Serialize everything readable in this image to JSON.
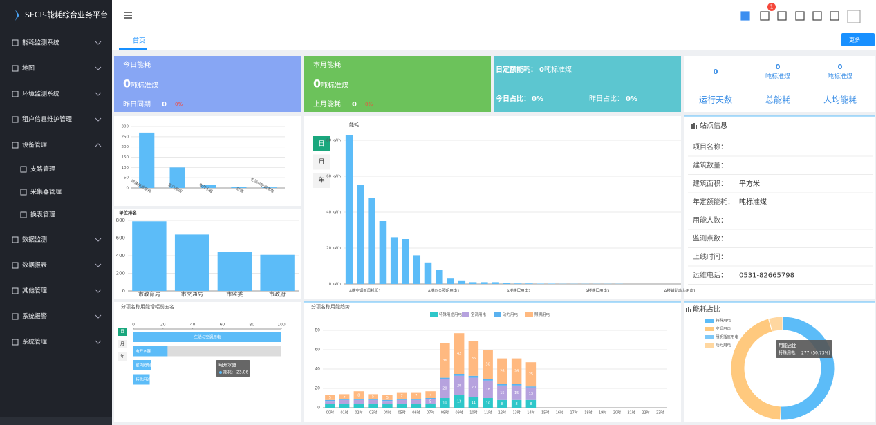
{
  "sidebar": {
    "logo": "SECP-能耗综合业务平台",
    "menu": [
      "能耗监测系统",
      "地图",
      "环境监测系统",
      "租户信息维护管理",
      "设备管理",
      "支路管理",
      "采集器管理",
      "换表管理",
      "数据监测",
      "数据报表",
      "其他管理",
      "系统报警",
      "系统管理"
    ]
  },
  "notification_count": 1,
  "tabs": {
    "home": "首页",
    "more": "更多"
  },
  "cards": [
    {
      "title": "今日能耗",
      "value": 0,
      "unit": "吨标准煤",
      "compare_label": "昨日同期",
      "compare_value": 0,
      "change": "0%",
      "color": "#87a6f4"
    },
    {
      "title": "本月能耗",
      "value": 0,
      "unit": "吨标准煤",
      "compare_label": "上月能耗",
      "compare_value": 0,
      "change": "0%",
      "color": "#6cc25b"
    }
  ],
  "quota": {
    "label": "日定额能耗：",
    "value": 0,
    "unit": "吨标准煤",
    "today_label": "今日占比：",
    "today_value": "0%",
    "yesterday_label": "昨日占比：",
    "yesterday_value": "0%",
    "color": "#5cc6d0"
  },
  "summary": [
    {
      "value": 0,
      "label": "运行天数"
    },
    {
      "value": 0,
      "unit": "吨标准煤",
      "label": "总能耗"
    },
    {
      "value": 0,
      "unit": "吨标准煤",
      "label": "人均能耗"
    }
  ],
  "site_info": {
    "title": "站点信息",
    "rows": [
      {
        "label": "项目名称："
      },
      {
        "label": "建筑数量："
      },
      {
        "label": "建筑面积：",
        "value": "平方米"
      },
      {
        "label": "年定额能耗：",
        "value": "吨标准煤"
      },
      {
        "label": "用能人数："
      },
      {
        "label": "监测点数："
      },
      {
        "label": "上线时间："
      },
      {
        "label": "运维电话：",
        "value": "0531-82665798"
      }
    ]
  },
  "charts": {
    "category_bar": {
      "type": "bar",
      "categories": [
        "特殊用途能耗",
        "室内照明",
        "电开水器",
        "空调",
        "生活与空调用电"
      ],
      "values": [
        270,
        100,
        15,
        5,
        3
      ],
      "ylim": [
        0,
        300
      ],
      "yticks": [
        0,
        50,
        100,
        150,
        200,
        250,
        300
      ],
      "color": "#5cbcf8"
    },
    "unit_rank": {
      "type": "bar",
      "title": "单位排名",
      "categories": [
        "市教育局",
        "市交通局",
        "市监委",
        "市政府"
      ],
      "values": [
        790,
        640,
        440,
        410
      ],
      "ylim": [
        0,
        800
      ],
      "yticks": [
        0,
        200,
        400,
        600,
        800
      ],
      "color": "#5cbcf8"
    },
    "energy": {
      "type": "bar",
      "y_label": "能耗",
      "buttons": [
        "日",
        "月",
        "年"
      ],
      "categories": [
        "A楼空调新风机组1",
        null,
        null,
        null,
        null,
        null,
        null,
        "A楼办公照明用电1",
        null,
        null,
        null,
        null,
        null,
        null,
        "A楼楼层用电2",
        null,
        null,
        null,
        null,
        null,
        null,
        "A楼楼层用电3",
        null,
        null,
        null,
        null,
        null,
        null,
        "A楼辅助动力用电1",
        null
      ],
      "values": [
        83,
        55,
        48,
        35,
        26,
        25,
        16,
        12,
        8,
        3,
        2,
        1,
        1,
        1,
        0.5,
        0.3,
        0.3,
        0.2,
        0.2,
        0.1,
        0.1,
        0.1,
        0.1,
        0.1,
        0.1,
        0,
        0,
        0,
        0,
        0
      ],
      "ylim": [
        0,
        85
      ],
      "yticks": [
        {
          "value": 0,
          "label": "0 kWh"
        },
        {
          "value": 20,
          "label": "20 kWh"
        },
        {
          "value": 40,
          "label": "40 kWh"
        },
        {
          "value": 60,
          "label": "60 kWh"
        },
        {
          "value": 80,
          "label": "80 kWh"
        }
      ],
      "color": "#5cbcf8"
    },
    "top5": {
      "type": "hbar",
      "title": "分项名称用能增幅前五名",
      "buttons": [
        "日",
        "月",
        "年"
      ],
      "categories": [
        "生活与空调用电",
        "电开水器",
        "室内照明",
        "特殊用途能耗"
      ],
      "values": [
        100,
        23.06,
        12,
        11
      ],
      "xlim": [
        0,
        100
      ],
      "xticks": [
        0,
        20,
        40,
        60,
        80,
        100
      ],
      "color": "#5cbcf8",
      "tooltip": {
        "title": "电开水器",
        "label": "能耗:"
      }
    },
    "trend": {
      "type": "stacked_bar",
      "title": "分项名称用能趋势",
      "categories": [
        "00时",
        "01时",
        "02时",
        "03时",
        "04时",
        "05时",
        "06时",
        "07时",
        "08时",
        "09时",
        "10时",
        "11时",
        "12时",
        "13时",
        "14时",
        "15时",
        "16时",
        "17时",
        "18时",
        "19时",
        "20时",
        "21时",
        "22时",
        "23时"
      ],
      "series": [
        {
          "name": "特殊用途用电",
          "color": "#2ec7c9",
          "values": [
            4,
            4,
            4,
            4,
            4,
            4,
            4,
            4,
            10,
            13,
            11,
            10,
            8,
            8,
            8,
            0,
            0,
            0,
            0,
            0,
            0,
            0,
            0,
            0
          ]
        },
        {
          "name": "空调用电",
          "color": "#b6a2de",
          "values": [
            3,
            4,
            4,
            4,
            3,
            4,
            4,
            5,
            20,
            20,
            20,
            18,
            15,
            15,
            13,
            0,
            0,
            0,
            0,
            0,
            0,
            0,
            0,
            0
          ]
        },
        {
          "name": "动力用电",
          "color": "#5ab1ef",
          "values": [
            1,
            1,
            1,
            1,
            1,
            1,
            1,
            1,
            1,
            2,
            2,
            2,
            2,
            2,
            1,
            0,
            0,
            0,
            0,
            0,
            0,
            0,
            0,
            0
          ]
        },
        {
          "name": "照明用电",
          "color": "#ffb980",
          "values": [
            5,
            5,
            8,
            5,
            5,
            7,
            7,
            7,
            36,
            42,
            36,
            30,
            26,
            26,
            25,
            0,
            0,
            0,
            0,
            0,
            0,
            0,
            0,
            0
          ]
        }
      ],
      "ylim": [
        0,
        80
      ],
      "yticks": [
        0,
        20,
        40,
        60,
        80
      ]
    },
    "share": {
      "type": "donut",
      "title": "能耗占比",
      "categories": [
        "特殊用电",
        "空调用电",
        "照明插座用电",
        "动力用电"
      ],
      "values": [
        277,
        245,
        0,
        24
      ],
      "colors": [
        "#5cbcf8",
        "#ffc97e",
        "#7ec8f8",
        "#ffd7a0"
      ],
      "tooltip": {
        "title": "用能占比",
        "label": "特殊用电:",
        "percent": "(50.73%)"
      }
    }
  }
}
